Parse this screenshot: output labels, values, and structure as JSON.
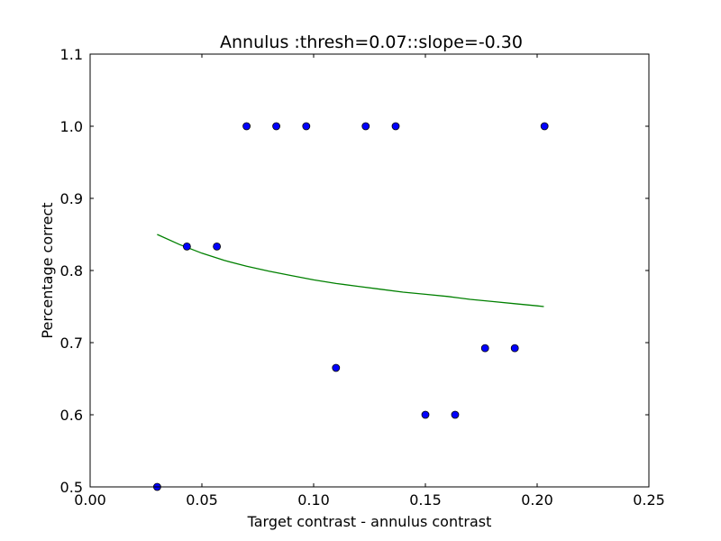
{
  "chart_data": {
    "type": "scatter",
    "title": "Annulus :thresh=0.07::slope=-0.30",
    "xlabel": "Target contrast - annulus contrast",
    "ylabel": "Percentage correct",
    "xlim": [
      0.0,
      0.25
    ],
    "ylim": [
      0.5,
      1.1
    ],
    "xticks": [
      "0.00",
      "0.05",
      "0.10",
      "0.15",
      "0.20",
      "0.25"
    ],
    "yticks": [
      "0.5",
      "0.6",
      "0.7",
      "0.8",
      "0.9",
      "1.0",
      "1.1"
    ],
    "grid": false,
    "series": [
      {
        "type": "scatter",
        "color": "#0000ff",
        "x": [
          0.03,
          0.0433,
          0.0567,
          0.07,
          0.0833,
          0.0967,
          0.11,
          0.1233,
          0.1367,
          0.15,
          0.1633,
          0.1767,
          0.19,
          0.2033
        ],
        "y": [
          0.5,
          0.8333,
          0.8333,
          1.0,
          1.0,
          1.0,
          0.665,
          1.0,
          1.0,
          0.6,
          0.6,
          0.6923,
          0.6923,
          1.0
        ]
      },
      {
        "type": "line",
        "color": "#008000",
        "x": [
          0.03,
          0.04,
          0.05,
          0.06,
          0.07,
          0.08,
          0.09,
          0.1,
          0.11,
          0.12,
          0.13,
          0.14,
          0.15,
          0.16,
          0.17,
          0.18,
          0.19,
          0.2,
          0.203
        ],
        "y": [
          0.85,
          0.836,
          0.824,
          0.814,
          0.806,
          0.799,
          0.793,
          0.787,
          0.782,
          0.778,
          0.774,
          0.77,
          0.767,
          0.764,
          0.76,
          0.757,
          0.754,
          0.751,
          0.75
        ]
      }
    ]
  }
}
